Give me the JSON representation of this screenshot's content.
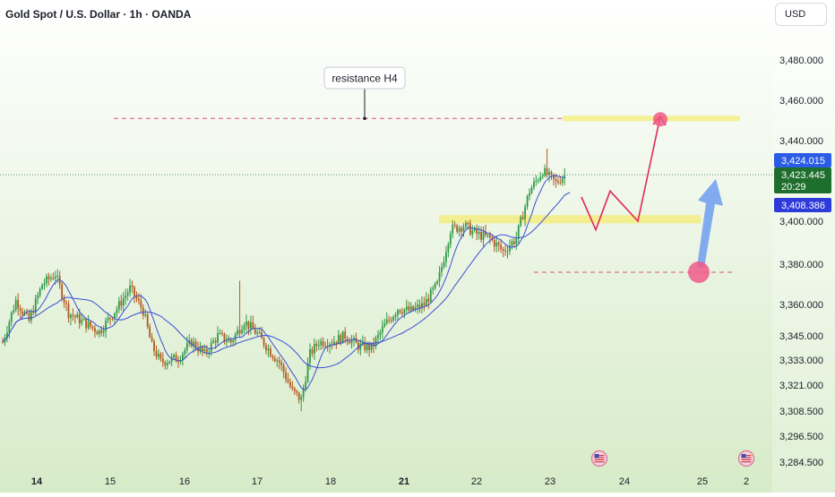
{
  "header": {
    "title": "Gold Spot / U.S. Dollar · 1h · OANDA",
    "currency": "USD"
  },
  "colors": {
    "bg_top": "#ffffff",
    "bg_bottom": "#d6ebc8",
    "bull": "#2f9a48",
    "bear": "#b35a1f",
    "ma_fast": "#3b4fd6",
    "ma_slow": "#3b4fd6",
    "resistance_line": "#d9507f",
    "zone": "#f3ee86",
    "red_arrow": "#e2265a",
    "blue_arrow": "#6f9ef0",
    "marker": "#f05a88",
    "price_tag_blue": "#2b5ce5",
    "price_tag_green": "#1e6e2e",
    "price_tag_navy": "#2e3bd8"
  },
  "chart_data": {
    "type": "candlestick",
    "title": "Gold Spot / U.S. Dollar · 1h · OANDA",
    "currency": "USD",
    "y_ticks": [
      "3,480.000",
      "3,460.000",
      "3,440.000",
      "3,400.000",
      "3,380.000",
      "3,360.000",
      "3,345.000",
      "3,333.000",
      "3,321.000",
      "3,308.500",
      "3,296.500",
      "3,284.500"
    ],
    "x_ticks": [
      {
        "label": "14",
        "bold": true
      },
      {
        "label": "15",
        "bold": false
      },
      {
        "label": "16",
        "bold": false
      },
      {
        "label": "17",
        "bold": false
      },
      {
        "label": "18",
        "bold": false
      },
      {
        "label": "21",
        "bold": true
      },
      {
        "label": "22",
        "bold": false
      },
      {
        "label": "23",
        "bold": false
      },
      {
        "label": "24",
        "bold": false
      },
      {
        "label": "25",
        "bold": false
      },
      {
        "label": "2",
        "bold": false
      }
    ],
    "price_tags": {
      "high": "3,424.015",
      "last": "3,423.445",
      "countdown": "20:29",
      "ma": "3,408.386"
    },
    "annotations": {
      "resistance_label": "resistance H4",
      "resistance_level": 3451,
      "support_zone": [
        3399,
        3403
      ],
      "support_level": 3376,
      "projection_red": [
        3412,
        3396,
        3415,
        3400,
        3452
      ],
      "projection_blue": [
        3376,
        3421
      ]
    },
    "event_icons": [
      "us-flag-icon",
      "us-flag-icon"
    ],
    "key_points": [
      {
        "t": 0,
        "p": 3342
      },
      {
        "t": 6,
        "p": 3362
      },
      {
        "t": 12,
        "p": 3352
      },
      {
        "t": 18,
        "p": 3370
      },
      {
        "t": 24,
        "p": 3375
      },
      {
        "t": 30,
        "p": 3356
      },
      {
        "t": 36,
        "p": 3352
      },
      {
        "t": 44,
        "p": 3347
      },
      {
        "t": 52,
        "p": 3358
      },
      {
        "t": 58,
        "p": 3368
      },
      {
        "t": 64,
        "p": 3357
      },
      {
        "t": 68,
        "p": 3340
      },
      {
        "t": 72,
        "p": 3332
      },
      {
        "t": 80,
        "p": 3334
      },
      {
        "t": 86,
        "p": 3342
      },
      {
        "t": 92,
        "p": 3336
      },
      {
        "t": 98,
        "p": 3345
      },
      {
        "t": 104,
        "p": 3342
      },
      {
        "t": 110,
        "p": 3352
      },
      {
        "t": 116,
        "p": 3346
      },
      {
        "t": 122,
        "p": 3337
      },
      {
        "t": 126,
        "p": 3332
      },
      {
        "t": 132,
        "p": 3318
      },
      {
        "t": 136,
        "p": 3314
      },
      {
        "t": 140,
        "p": 3336
      },
      {
        "t": 144,
        "p": 3342
      },
      {
        "t": 150,
        "p": 3342
      },
      {
        "t": 156,
        "p": 3345
      },
      {
        "t": 162,
        "p": 3340
      },
      {
        "t": 168,
        "p": 3339
      },
      {
        "t": 174,
        "p": 3350
      },
      {
        "t": 180,
        "p": 3358
      },
      {
        "t": 186,
        "p": 3357
      },
      {
        "t": 192,
        "p": 3360
      },
      {
        "t": 198,
        "p": 3370
      },
      {
        "t": 204,
        "p": 3396
      },
      {
        "t": 210,
        "p": 3398
      },
      {
        "t": 216,
        "p": 3394
      },
      {
        "t": 222,
        "p": 3392
      },
      {
        "t": 228,
        "p": 3386
      },
      {
        "t": 234,
        "p": 3392
      },
      {
        "t": 240,
        "p": 3415
      },
      {
        "t": 246,
        "p": 3425
      },
      {
        "t": 252,
        "p": 3419
      },
      {
        "t": 256,
        "p": 3423
      }
    ]
  }
}
